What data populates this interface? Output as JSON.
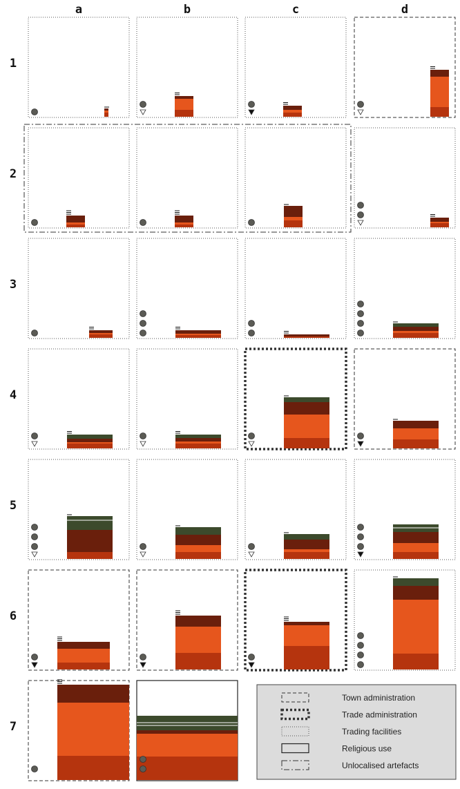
{
  "colors": {
    "green": "#3c4a2c",
    "dark_brown": "#6a1f0c",
    "orange": "#e6561d",
    "rust": "#b5340e",
    "dot": "#5b5b55",
    "legend_bg": "#dcdcdc"
  },
  "columns": [
    "a",
    "b",
    "c",
    "d"
  ],
  "rows": [
    "1",
    "2",
    "3",
    "4",
    "5",
    "6",
    "7"
  ],
  "legend": [
    {
      "label": "Town administration",
      "style": "dashed"
    },
    {
      "label": "Trade administration",
      "style": "bold-dotted"
    },
    {
      "label": "Trading facilities",
      "style": "dotted"
    },
    {
      "label": "Religious use",
      "style": "solid"
    },
    {
      "label": "Unlocalised artefacts",
      "style": "dashdot"
    }
  ],
  "cells": [
    {
      "id": "1a",
      "row": 1,
      "col": 0,
      "border": "dotted",
      "dots": 1,
      "marker": null,
      "stack": {
        "pos": "mid-right",
        "narrow": true,
        "dash_count": 1,
        "layers": [
          [
            "dark_brown",
            3
          ],
          [
            "orange",
            3
          ],
          [
            "rust",
            6
          ]
        ]
      }
    },
    {
      "id": "1b",
      "row": 1,
      "col": 1,
      "border": "dotted",
      "dots": 1,
      "marker": "open",
      "stack": {
        "pos": "left-mid",
        "narrow": false,
        "dash_count": 2,
        "layers": [
          [
            "dark_brown",
            4
          ],
          [
            "orange",
            16
          ],
          [
            "rust",
            10
          ]
        ]
      }
    },
    {
      "id": "1c",
      "row": 1,
      "col": 2,
      "border": "dotted",
      "dots": 1,
      "marker": "filled",
      "stack": {
        "pos": "left-mid",
        "narrow": false,
        "dash_count": 2,
        "layers": [
          [
            "dark_brown",
            6
          ],
          [
            "orange",
            4
          ],
          [
            "rust",
            6
          ]
        ]
      }
    },
    {
      "id": "1d",
      "row": 1,
      "col": 3,
      "border": "dashed",
      "dots": 1,
      "marker": "open",
      "stack": {
        "pos": "right",
        "narrow": false,
        "dash_count": 2,
        "layers": [
          [
            "dark_brown",
            10
          ],
          [
            "orange",
            44
          ],
          [
            "rust",
            14
          ]
        ]
      }
    },
    {
      "id": "2a",
      "row": 2,
      "col": 0,
      "border": "dotted",
      "dots": 1,
      "marker": null,
      "stack": {
        "pos": "left-mid",
        "narrow": false,
        "dash_count": 3,
        "layers": [
          [
            "dark_brown",
            10
          ],
          [
            "orange",
            3
          ],
          [
            "rust",
            4
          ]
        ]
      }
    },
    {
      "id": "2b",
      "row": 2,
      "col": 1,
      "border": "dotted",
      "dots": 1,
      "marker": null,
      "stack": {
        "pos": "left-mid",
        "narrow": false,
        "dash_count": 3,
        "layers": [
          [
            "dark_brown",
            10
          ],
          [
            "orange",
            3
          ],
          [
            "rust",
            4
          ]
        ]
      }
    },
    {
      "id": "2c",
      "row": 2,
      "col": 2,
      "border": "dotted",
      "dots": 1,
      "marker": null,
      "stack": {
        "pos": "mid",
        "narrow": false,
        "dash_count": 1,
        "layers": [
          [
            "dark_brown",
            16
          ],
          [
            "orange",
            5
          ],
          [
            "rust",
            10
          ]
        ]
      }
    },
    {
      "id": "2d",
      "row": 2,
      "col": 3,
      "border": "dotted",
      "dots": 2,
      "marker": "open",
      "stack": {
        "pos": "right",
        "narrow": false,
        "dash_count": 2,
        "layers": [
          [
            "dark_brown",
            6
          ],
          [
            "orange",
            2
          ],
          [
            "rust",
            6
          ]
        ]
      }
    },
    {
      "id": "3a",
      "row": 3,
      "col": 0,
      "border": "dotted",
      "dots": 1,
      "marker": null,
      "stack": {
        "pos": "mid-right",
        "narrow": false,
        "dash_count": 2,
        "layers": [
          [
            "dark_brown",
            4
          ],
          [
            "orange",
            2
          ],
          [
            "rust",
            5
          ]
        ]
      }
    },
    {
      "id": "3b",
      "row": 3,
      "col": 1,
      "border": "dotted",
      "dots": 3,
      "marker": null,
      "stack": {
        "pos": "wide",
        "narrow": false,
        "dash_count": 2,
        "layers": [
          [
            "dark_brown",
            5
          ],
          [
            "orange",
            2
          ],
          [
            "rust",
            4
          ]
        ]
      }
    },
    {
      "id": "3c",
      "row": 3,
      "col": 2,
      "border": "dotted",
      "dots": 2,
      "marker": null,
      "stack": {
        "pos": "wide",
        "narrow": false,
        "dash_count": 2,
        "layers": [
          [
            "dark_brown",
            3
          ],
          [
            "rust",
            2
          ]
        ]
      }
    },
    {
      "id": "3d",
      "row": 3,
      "col": 3,
      "border": "dotted",
      "dots": 4,
      "marker": null,
      "stack": {
        "pos": "wide",
        "narrow": false,
        "dash_count": 1,
        "layers": [
          [
            "green",
            5
          ],
          [
            "dark_brown",
            6
          ],
          [
            "orange",
            3
          ],
          [
            "rust",
            7
          ]
        ]
      }
    },
    {
      "id": "4a",
      "row": 4,
      "col": 0,
      "border": "dotted",
      "dots": 1,
      "marker": "open",
      "stack": {
        "pos": "wide",
        "narrow": false,
        "dash_count": 2,
        "layers": [
          [
            "green",
            6
          ],
          [
            "dark_brown",
            5
          ],
          [
            "orange",
            2
          ],
          [
            "rust",
            7
          ]
        ]
      }
    },
    {
      "id": "4b",
      "row": 4,
      "col": 1,
      "border": "dotted",
      "dots": 1,
      "marker": "open",
      "stack": {
        "pos": "wide",
        "narrow": false,
        "dash_count": 2,
        "layers": [
          [
            "green",
            5
          ],
          [
            "dark_brown",
            5
          ],
          [
            "orange",
            3
          ],
          [
            "rust",
            7
          ]
        ]
      }
    },
    {
      "id": "4c",
      "row": 4,
      "col": 2,
      "border": "bold-dotted",
      "dots": 1,
      "marker": "open",
      "stack": {
        "pos": "wide",
        "narrow": false,
        "dash_count": 1,
        "layers": [
          [
            "green",
            7
          ],
          [
            "dark_brown",
            18
          ],
          [
            "orange",
            34
          ],
          [
            "rust",
            15
          ]
        ]
      }
    },
    {
      "id": "4d",
      "row": 4,
      "col": 3,
      "border": "dashed",
      "dots": 1,
      "marker": "filled",
      "stack": {
        "pos": "wide",
        "narrow": false,
        "dash_count": 1,
        "layers": [
          [
            "dark_brown",
            11
          ],
          [
            "orange",
            16
          ],
          [
            "rust",
            13
          ]
        ]
      }
    },
    {
      "id": "5a",
      "row": 5,
      "col": 0,
      "border": "dotted",
      "dots": 3,
      "marker": "open",
      "stack": {
        "pos": "wide",
        "narrow": false,
        "dash_count": 1,
        "layers": [
          [
            "green",
            6
          ],
          [
            "green",
            14
          ],
          [
            "dark_brown",
            32
          ],
          [
            "rust",
            10
          ]
        ]
      }
    },
    {
      "id": "5b",
      "row": 5,
      "col": 1,
      "border": "dotted",
      "dots": 1,
      "marker": "open",
      "stack": {
        "pos": "wide",
        "narrow": false,
        "dash_count": 1,
        "layers": [
          [
            "green",
            11
          ],
          [
            "dark_brown",
            15
          ],
          [
            "orange",
            10
          ],
          [
            "rust",
            10
          ]
        ]
      }
    },
    {
      "id": "5c",
      "row": 5,
      "col": 2,
      "border": "dotted",
      "dots": 1,
      "marker": "open",
      "stack": {
        "pos": "wide",
        "narrow": false,
        "dash_count": 1,
        "layers": [
          [
            "green",
            8
          ],
          [
            "dark_brown",
            14
          ],
          [
            "orange",
            4
          ],
          [
            "rust",
            10
          ]
        ]
      }
    },
    {
      "id": "5d",
      "row": 5,
      "col": 3,
      "border": "dotted",
      "dots": 3,
      "marker": "filled",
      "stack": {
        "pos": "wide",
        "narrow": false,
        "dash_count": 0,
        "layers": [
          [
            "green",
            5
          ],
          [
            "green",
            6
          ],
          [
            "dark_brown",
            16
          ],
          [
            "orange",
            13
          ],
          [
            "rust",
            10
          ]
        ]
      }
    },
    {
      "id": "6a",
      "row": 6,
      "col": 0,
      "border": "dashed",
      "dots": 1,
      "marker": "filled",
      "stack": {
        "pos": "left-mid-wide",
        "narrow": false,
        "dash_count": 3,
        "layers": [
          [
            "dark_brown",
            10
          ],
          [
            "orange",
            20
          ],
          [
            "rust",
            10
          ]
        ]
      }
    },
    {
      "id": "6b",
      "row": 6,
      "col": 1,
      "border": "dashed",
      "dots": 1,
      "marker": "filled",
      "stack": {
        "pos": "wide",
        "narrow": false,
        "dash_count": 3,
        "layers": [
          [
            "dark_brown",
            16
          ],
          [
            "orange",
            38
          ],
          [
            "rust",
            24
          ]
        ]
      }
    },
    {
      "id": "6c",
      "row": 6,
      "col": 2,
      "border": "bold-dotted",
      "dots": 1,
      "marker": "filled",
      "stack": {
        "pos": "wide",
        "narrow": false,
        "dash_count": 3,
        "layers": [
          [
            "dark_brown",
            5
          ],
          [
            "orange",
            30
          ],
          [
            "rust",
            34
          ]
        ]
      }
    },
    {
      "id": "6d",
      "row": 6,
      "col": 3,
      "border": "dotted",
      "dots": 4,
      "marker": null,
      "stack": {
        "pos": "wide",
        "narrow": false,
        "dash_count": 1,
        "layers": [
          [
            "green",
            11
          ],
          [
            "dark_brown",
            20
          ],
          [
            "orange",
            78
          ],
          [
            "rust",
            23
          ]
        ]
      }
    },
    {
      "id": "7a",
      "row": 7,
      "col": 0,
      "border": "dashed",
      "dots": 1,
      "marker": null,
      "stack": {
        "pos": "tall",
        "narrow": false,
        "dash_count": 3,
        "layers": [
          [
            "dark_brown",
            26
          ],
          [
            "orange",
            77
          ],
          [
            "rust",
            35
          ]
        ]
      }
    },
    {
      "id": "7b",
      "row": 7,
      "col": 1,
      "border": "solid",
      "dots": 2,
      "marker": null,
      "stack": {
        "pos": "full",
        "narrow": false,
        "dash_count": 0,
        "layers": [
          [
            "green",
            10
          ],
          [
            "green",
            4
          ],
          [
            "green",
            7
          ],
          [
            "dark_brown",
            5
          ],
          [
            "orange",
            33
          ],
          [
            "rust",
            34
          ]
        ]
      }
    }
  ]
}
